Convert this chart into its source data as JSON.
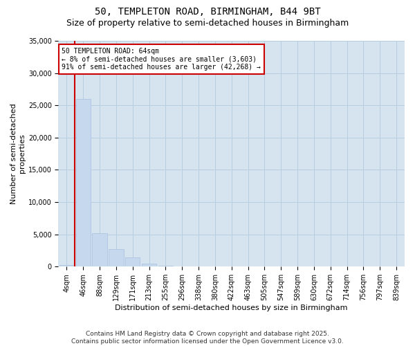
{
  "title_line1": "50, TEMPLETON ROAD, BIRMINGHAM, B44 9BT",
  "title_line2": "Size of property relative to semi-detached houses in Birmingham",
  "xlabel": "Distribution of semi-detached houses by size in Birmingham",
  "ylabel": "Number of semi-detached\nproperties",
  "categories": [
    "4sqm",
    "46sqm",
    "88sqm",
    "129sqm",
    "171sqm",
    "213sqm",
    "255sqm",
    "296sqm",
    "338sqm",
    "380sqm",
    "422sqm",
    "463sqm",
    "505sqm",
    "547sqm",
    "589sqm",
    "630sqm",
    "672sqm",
    "714sqm",
    "756sqm",
    "797sqm",
    "839sqm"
  ],
  "values": [
    200,
    26000,
    5200,
    2700,
    1400,
    400,
    150,
    0,
    0,
    0,
    0,
    0,
    0,
    0,
    0,
    0,
    0,
    0,
    0,
    0,
    0
  ],
  "bar_color": "#c5d8ee",
  "bar_edge_color": "#a8c0de",
  "grid_color": "#b8cde0",
  "bg_color": "#d6e4f0",
  "fig_bg_color": "#ffffff",
  "annotation_text": "50 TEMPLETON ROAD: 64sqm\n← 8% of semi-detached houses are smaller (3,603)\n91% of semi-detached houses are larger (42,268) →",
  "vline_x_idx": 1,
  "vline_color": "#cc0000",
  "annotation_box_color": "#cc0000",
  "ylim": [
    0,
    35000
  ],
  "yticks": [
    0,
    5000,
    10000,
    15000,
    20000,
    25000,
    30000,
    35000
  ],
  "footer_line1": "Contains HM Land Registry data © Crown copyright and database right 2025.",
  "footer_line2": "Contains public sector information licensed under the Open Government Licence v3.0.",
  "title_fontsize": 10,
  "subtitle_fontsize": 9,
  "axis_label_fontsize": 8,
  "tick_fontsize": 7,
  "annotation_fontsize": 7,
  "footer_fontsize": 6.5
}
